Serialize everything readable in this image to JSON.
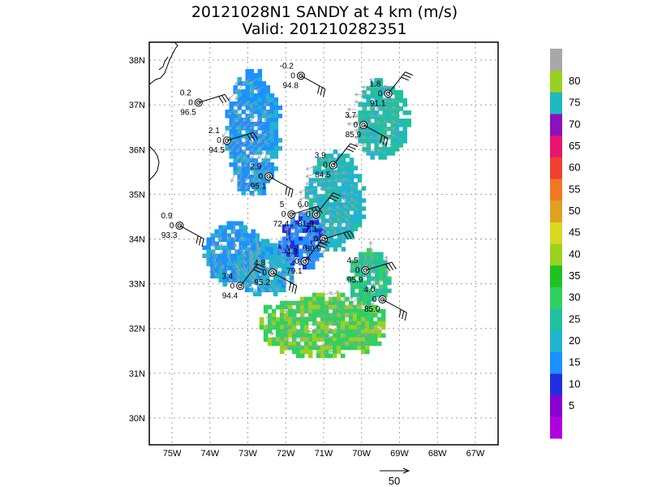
{
  "title_line1": "20121028N1 SANDY at 4 km (m/s)",
  "title_line2": "Valid: 201210282351",
  "colors": {
    "background": "#ffffff",
    "frame": "#000000",
    "grid": "#a0a0a0",
    "coastline": "#000000",
    "vector": "#a0a0a0",
    "station": "#000000"
  },
  "map": {
    "lon_range": [
      -75.6,
      -66.4
    ],
    "lat_range": [
      29.4,
      38.4
    ],
    "lon_ticks": [
      "75W",
      "74W",
      "73W",
      "72W",
      "71W",
      "70W",
      "69W",
      "68W",
      "67W"
    ],
    "lon_values": [
      -75,
      -74,
      -73,
      -72,
      -71,
      -70,
      -69,
      -68,
      -67
    ],
    "lat_ticks": [
      "30N",
      "31N",
      "32N",
      "33N",
      "34N",
      "35N",
      "36N",
      "37N",
      "38N"
    ],
    "lat_values": [
      30,
      31,
      32,
      33,
      34,
      35,
      36,
      37,
      38
    ],
    "grid": true
  },
  "colorbar": {
    "labels": [
      "5",
      "10",
      "15",
      "20",
      "25",
      "30",
      "35",
      "40",
      "45",
      "50",
      "55",
      "60",
      "65",
      "70",
      "75",
      "80"
    ],
    "colors": [
      "#b000e0",
      "#8a00d0",
      "#2030e0",
      "#1e90ff",
      "#20b4d0",
      "#20c0a0",
      "#30d060",
      "#22c022",
      "#9ad21e",
      "#d8d820",
      "#e0a020",
      "#f07820",
      "#f04030",
      "#e81470",
      "#8a10c0",
      "#20b8c0",
      "#98d020",
      "#a8a8a8"
    ]
  },
  "wind_reference": {
    "label": "50"
  },
  "echo_regions": [
    {
      "name": "north-band",
      "lon": [
        -73.6,
        -72.2
      ],
      "lat": [
        35.0,
        37.8
      ],
      "base": "#1e90ff",
      "alt": "#20b4d0"
    },
    {
      "name": "northeast-band",
      "lon": [
        -70.2,
        -68.8
      ],
      "lat": [
        35.8,
        37.6
      ],
      "base": "#20c0a0",
      "alt": "#20b4d0"
    },
    {
      "name": "center-east",
      "lon": [
        -71.5,
        -70.0
      ],
      "lat": [
        33.8,
        36.0
      ],
      "base": "#20b4d0",
      "alt": "#20c0a0"
    },
    {
      "name": "west-arm",
      "lon": [
        -74.2,
        -72.6
      ],
      "lat": [
        33.0,
        34.4
      ],
      "base": "#1e90ff",
      "alt": "#20b4d0"
    },
    {
      "name": "southwest-arm",
      "lon": [
        -73.4,
        -71.8
      ],
      "lat": [
        32.8,
        34.0
      ],
      "base": "#20b4d0",
      "alt": "#1e90ff"
    },
    {
      "name": "inner-core",
      "lon": [
        -72.2,
        -71.0
      ],
      "lat": [
        33.4,
        34.6
      ],
      "base": "#1e90ff",
      "alt": "#2030e0"
    },
    {
      "name": "south-band",
      "lon": [
        -72.8,
        -69.4
      ],
      "lat": [
        31.4,
        32.8
      ],
      "base": "#30d060",
      "alt": "#9ad21e"
    },
    {
      "name": "east-arm",
      "lon": [
        -70.4,
        -69.3
      ],
      "lat": [
        32.6,
        33.8
      ],
      "base": "#20c0a0",
      "alt": "#30d060"
    }
  ],
  "stations": [
    {
      "lon": -71.6,
      "lat": 37.65,
      "top": "-0.2",
      "mid": "0",
      "bottom": "94.8"
    },
    {
      "lon": -74.3,
      "lat": 37.05,
      "top": "0.2",
      "mid": "0",
      "bottom": "96.5"
    },
    {
      "lon": -69.3,
      "lat": 37.25,
      "top": "1.8",
      "mid": "0",
      "bottom": "91.1"
    },
    {
      "lon": -69.95,
      "lat": 36.55,
      "top": "3.7",
      "mid": "0",
      "bottom": "85.9"
    },
    {
      "lon": -73.55,
      "lat": 36.2,
      "top": "2.1",
      "mid": "0",
      "bottom": "94.5"
    },
    {
      "lon": -70.75,
      "lat": 35.65,
      "top": "3.9",
      "mid": "0",
      "bottom": "84.5"
    },
    {
      "lon": -72.45,
      "lat": 35.4,
      "top": "2.9",
      "mid": "0",
      "bottom": "95.1"
    },
    {
      "lon": -71.85,
      "lat": 34.55,
      "top": "5",
      "mid": "0",
      "bottom": "72.4"
    },
    {
      "lon": -71.2,
      "lat": 34.55,
      "top": "6.0",
      "mid": "0",
      "bottom": "81.9"
    },
    {
      "lon": -74.8,
      "lat": 34.3,
      "top": "0.9",
      "mid": "0",
      "bottom": "93.3"
    },
    {
      "lon": -71.0,
      "lat": 34.0,
      "top": "7.3",
      "mid": "0",
      "bottom": "80.9"
    },
    {
      "lon": -71.5,
      "lat": 33.5,
      "top": "4.8",
      "mid": "0",
      "bottom": "79.1"
    },
    {
      "lon": -72.35,
      "lat": 33.25,
      "top": "4.8",
      "mid": "0",
      "bottom": "95.2"
    },
    {
      "lon": -69.9,
      "lat": 33.3,
      "top": "4.5",
      "mid": "0",
      "bottom": "95.9"
    },
    {
      "lon": -73.2,
      "lat": 32.95,
      "top": "3.4",
      "mid": "0",
      "bottom": "94.4"
    },
    {
      "lon": -69.45,
      "lat": 32.65,
      "top": "4.0",
      "mid": "0",
      "bottom": "85.0"
    }
  ]
}
